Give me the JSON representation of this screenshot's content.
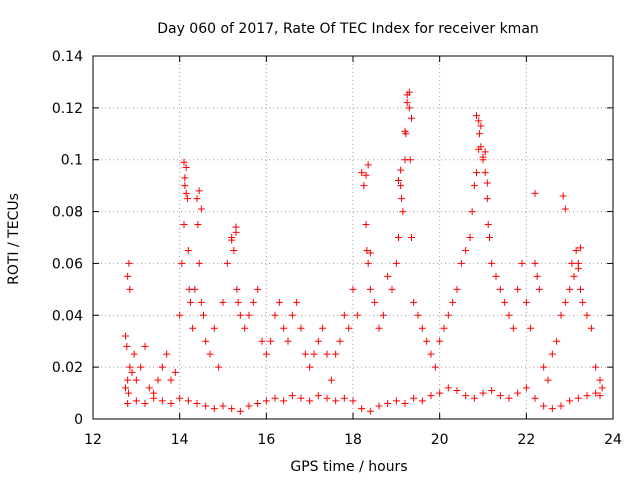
{
  "chart_data": {
    "type": "scatter",
    "title": "Day 060 of 2017, Rate Of TEC Index for receiver kman",
    "xlabel": "GPS time / hours",
    "ylabel": "ROTI / TECUs",
    "xlim": [
      12,
      24
    ],
    "ylim": [
      0,
      0.14
    ],
    "xticks": [
      12,
      14,
      16,
      18,
      20,
      22,
      24
    ],
    "yticks": [
      0,
      0.02,
      0.04,
      0.06,
      0.08,
      0.1,
      0.12,
      0.14
    ],
    "xtick_labels": [
      "12",
      "14",
      "16",
      "18",
      "20",
      "22",
      "24"
    ],
    "ytick_labels": [
      "0",
      "0.02",
      "0.04",
      "0.06",
      "0.08",
      "0.1",
      "0.12",
      "0.14"
    ],
    "grid": true,
    "marker": "plus",
    "color": "#ff0000",
    "series": [
      {
        "name": "ROTI",
        "x": [
          12.75,
          12.78,
          12.8,
          12.83,
          12.85,
          12.8,
          12.82,
          12.75,
          12.85,
          12.9,
          12.95,
          13.0,
          13.1,
          13.2,
          13.3,
          13.4,
          13.5,
          13.6,
          13.7,
          13.8,
          13.9,
          14.0,
          14.05,
          14.1,
          14.12,
          14.15,
          14.18,
          14.2,
          14.22,
          14.25,
          14.3,
          14.35,
          14.4,
          14.42,
          14.45,
          14.5,
          14.55,
          14.6,
          14.7,
          14.8,
          14.9,
          15.0,
          15.1,
          15.2,
          15.25,
          15.3,
          15.32,
          15.35,
          15.4,
          15.5,
          15.6,
          15.7,
          15.8,
          15.9,
          16.0,
          16.1,
          16.2,
          16.3,
          16.4,
          16.5,
          16.6,
          16.7,
          16.8,
          16.9,
          17.0,
          17.1,
          17.2,
          17.3,
          17.4,
          17.5,
          17.6,
          17.7,
          17.8,
          17.9,
          18.0,
          18.1,
          18.2,
          18.25,
          18.3,
          18.32,
          18.35,
          18.4,
          18.5,
          18.6,
          18.7,
          18.8,
          18.9,
          19.0,
          19.05,
          19.1,
          19.12,
          19.15,
          19.2,
          19.22,
          19.25,
          19.3,
          19.32,
          19.35,
          19.4,
          19.5,
          19.6,
          19.7,
          19.8,
          19.9,
          20.0,
          20.1,
          20.2,
          20.3,
          20.4,
          20.5,
          20.6,
          20.7,
          20.75,
          20.8,
          20.85,
          20.9,
          20.92,
          20.95,
          21.0,
          21.05,
          21.1,
          21.12,
          21.15,
          21.2,
          21.3,
          21.4,
          21.5,
          21.6,
          21.7,
          21.8,
          21.9,
          22.0,
          22.1,
          22.2,
          22.25,
          22.3,
          22.4,
          22.5,
          22.6,
          22.7,
          22.8,
          22.9,
          23.0,
          23.05,
          23.1,
          23.15,
          23.2,
          23.25,
          23.3,
          23.4,
          23.5,
          23.6,
          23.7,
          23.75,
          12.8,
          13.0,
          13.2,
          13.4,
          13.6,
          13.8,
          14.0,
          14.2,
          14.4,
          14.6,
          14.8,
          15.0,
          15.2,
          15.4,
          15.6,
          15.8,
          16.0,
          16.2,
          16.4,
          16.6,
          16.8,
          17.0,
          17.2,
          17.4,
          17.6,
          17.8,
          18.0,
          18.2,
          18.4,
          18.6,
          18.8,
          19.0,
          19.2,
          19.4,
          19.6,
          19.8,
          20.0,
          20.2,
          20.4,
          20.6,
          20.8,
          21.0,
          21.2,
          21.4,
          21.6,
          21.8,
          22.0,
          22.2,
          22.4,
          22.6,
          22.8,
          23.0,
          23.2,
          23.4,
          23.6,
          23.7,
          14.1,
          14.12,
          14.15,
          14.45,
          14.5,
          15.2,
          15.3,
          18.3,
          18.35,
          18.4,
          19.05,
          19.1,
          19.2,
          19.25,
          19.3,
          19.35,
          20.85,
          20.9,
          20.95,
          21.0,
          21.05,
          21.1,
          22.2,
          22.85,
          22.9,
          23.2,
          23.25
        ],
        "y": [
          0.032,
          0.028,
          0.055,
          0.06,
          0.05,
          0.015,
          0.01,
          0.012,
          0.02,
          0.018,
          0.025,
          0.015,
          0.02,
          0.028,
          0.012,
          0.01,
          0.015,
          0.02,
          0.025,
          0.015,
          0.018,
          0.04,
          0.06,
          0.075,
          0.09,
          0.097,
          0.085,
          0.065,
          0.05,
          0.045,
          0.035,
          0.05,
          0.085,
          0.075,
          0.06,
          0.045,
          0.04,
          0.03,
          0.025,
          0.035,
          0.02,
          0.045,
          0.06,
          0.07,
          0.065,
          0.072,
          0.05,
          0.045,
          0.04,
          0.035,
          0.04,
          0.045,
          0.05,
          0.03,
          0.025,
          0.03,
          0.04,
          0.045,
          0.035,
          0.03,
          0.04,
          0.045,
          0.035,
          0.025,
          0.02,
          0.025,
          0.03,
          0.035,
          0.025,
          0.015,
          0.025,
          0.03,
          0.04,
          0.035,
          0.05,
          0.04,
          0.095,
          0.09,
          0.075,
          0.065,
          0.06,
          0.05,
          0.045,
          0.035,
          0.04,
          0.055,
          0.05,
          0.06,
          0.07,
          0.09,
          0.085,
          0.08,
          0.1,
          0.11,
          0.125,
          0.12,
          0.1,
          0.07,
          0.045,
          0.04,
          0.035,
          0.03,
          0.025,
          0.02,
          0.03,
          0.035,
          0.04,
          0.045,
          0.05,
          0.06,
          0.065,
          0.07,
          0.08,
          0.09,
          0.095,
          0.115,
          0.11,
          0.105,
          0.1,
          0.095,
          0.085,
          0.075,
          0.07,
          0.06,
          0.055,
          0.05,
          0.045,
          0.04,
          0.035,
          0.05,
          0.06,
          0.045,
          0.035,
          0.06,
          0.055,
          0.05,
          0.02,
          0.015,
          0.025,
          0.03,
          0.04,
          0.045,
          0.05,
          0.06,
          0.055,
          0.065,
          0.06,
          0.05,
          0.045,
          0.04,
          0.035,
          0.02,
          0.015,
          0.012,
          0.006,
          0.007,
          0.006,
          0.008,
          0.007,
          0.006,
          0.008,
          0.007,
          0.006,
          0.005,
          0.004,
          0.005,
          0.004,
          0.003,
          0.005,
          0.006,
          0.007,
          0.008,
          0.007,
          0.009,
          0.008,
          0.007,
          0.009,
          0.008,
          0.007,
          0.008,
          0.007,
          0.004,
          0.003,
          0.005,
          0.006,
          0.007,
          0.006,
          0.008,
          0.007,
          0.009,
          0.01,
          0.012,
          0.011,
          0.009,
          0.008,
          0.01,
          0.011,
          0.009,
          0.008,
          0.01,
          0.012,
          0.008,
          0.005,
          0.004,
          0.005,
          0.007,
          0.008,
          0.009,
          0.01,
          0.009,
          0.099,
          0.093,
          0.087,
          0.088,
          0.081,
          0.069,
          0.074,
          0.094,
          0.098,
          0.064,
          0.092,
          0.096,
          0.111,
          0.122,
          0.126,
          0.116,
          0.117,
          0.104,
          0.113,
          0.101,
          0.103,
          0.091,
          0.087,
          0.086,
          0.081,
          0.058,
          0.066
        ]
      }
    ]
  }
}
